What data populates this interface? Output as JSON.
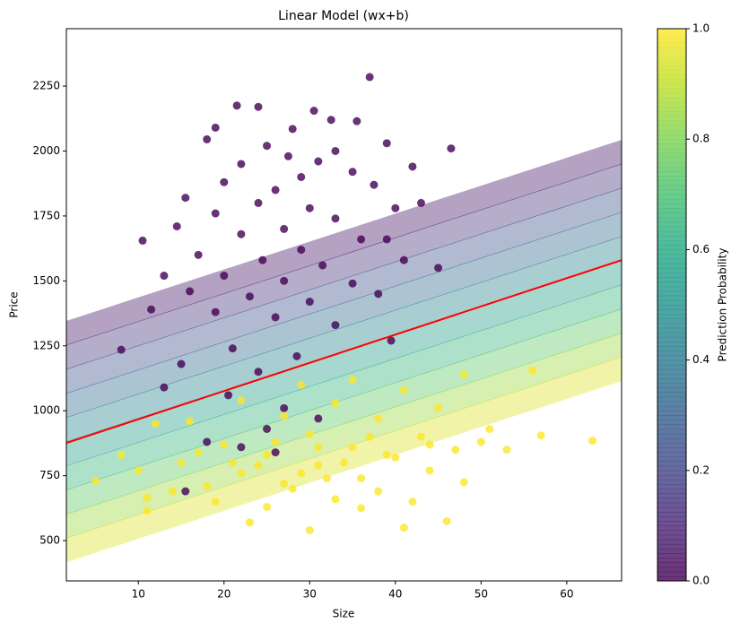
{
  "chart_data": {
    "type": "scatter",
    "title": "Linear Model (wx+b)",
    "x_label": "Size",
    "y_label": "Price",
    "xlim": [
      1.6,
      66.4
    ],
    "ylim": [
      345,
      2471
    ],
    "xticks": [
      10,
      20,
      30,
      40,
      50,
      60
    ],
    "yticks": [
      500,
      750,
      1000,
      1250,
      1500,
      1750,
      2000,
      2250
    ],
    "grid": false,
    "series": [
      {
        "color": "#440154",
        "x": [
          37,
          21.5,
          24,
          30.5,
          32.5,
          35.5,
          19,
          28,
          39,
          46.5,
          25,
          33,
          18,
          27.5,
          31,
          42,
          22,
          35,
          15.5,
          20,
          29,
          26,
          37.5,
          24,
          30,
          40,
          43,
          19,
          14.5,
          33,
          27,
          22,
          36,
          10.5,
          39,
          29,
          17,
          24.5,
          31.5,
          41,
          45,
          20,
          27,
          35,
          13,
          16,
          23,
          30,
          38,
          11.5,
          19,
          26,
          33,
          39.5,
          8,
          21,
          28.5,
          15,
          24,
          13,
          20.5,
          27,
          31,
          25,
          18,
          26,
          15.5,
          22
        ],
        "values": [
          2285,
          2175,
          2170,
          2155,
          2120,
          2115,
          2090,
          2085,
          2030,
          2010,
          2020,
          2000,
          2045,
          1980,
          1960,
          1940,
          1950,
          1920,
          1820,
          1880,
          1900,
          1850,
          1870,
          1800,
          1780,
          1780,
          1800,
          1760,
          1710,
          1740,
          1700,
          1680,
          1660,
          1655,
          1660,
          1620,
          1600,
          1580,
          1560,
          1580,
          1550,
          1520,
          1500,
          1490,
          1520,
          1460,
          1440,
          1420,
          1450,
          1390,
          1380,
          1360,
          1330,
          1270,
          1235,
          1240,
          1210,
          1180,
          1150,
          1090,
          1060,
          1010,
          970,
          930,
          880,
          840,
          690,
          860
        ]
      },
      {
        "color": "#fde725",
        "x": [
          56,
          48,
          35,
          29,
          41,
          22,
          33,
          45,
          16,
          27,
          38,
          51,
          12,
          30,
          43,
          57,
          63,
          20,
          35,
          47,
          8,
          25,
          40,
          53,
          15,
          31,
          44,
          10,
          22,
          36,
          48,
          5,
          18,
          28,
          38,
          14,
          33,
          42,
          11,
          25,
          36,
          23,
          41,
          46,
          30,
          11,
          19,
          32,
          34,
          29,
          37,
          26,
          31,
          39,
          24,
          27,
          44,
          50,
          17,
          21
        ],
        "values": [
          1155,
          1140,
          1120,
          1100,
          1080,
          1040,
          1030,
          1010,
          960,
          980,
          970,
          930,
          950,
          910,
          900,
          905,
          885,
          870,
          860,
          850,
          830,
          830,
          820,
          850,
          800,
          790,
          770,
          770,
          760,
          740,
          725,
          730,
          710,
          700,
          690,
          690,
          660,
          650,
          665,
          630,
          625,
          570,
          550,
          575,
          540,
          615,
          650,
          740,
          800,
          760,
          900,
          880,
          860,
          830,
          790,
          720,
          870,
          880,
          840,
          800
        ]
      }
    ],
    "decision_line": {
      "color": "#ff0000",
      "x": [
        1.6,
        66.4
      ],
      "y": [
        876,
        1580
      ]
    },
    "contour": {
      "levels": [
        0,
        0.1,
        0.2,
        0.3,
        0.4,
        0.5,
        0.6,
        0.7,
        0.8,
        0.9,
        1
      ],
      "values": [
        [
          1346,
          2043
        ],
        [
          1253,
          1950
        ],
        [
          1160,
          1857
        ],
        [
          1067,
          1764
        ],
        [
          974,
          1671
        ],
        [
          881,
          1578
        ],
        [
          788,
          1485
        ],
        [
          695,
          1392
        ],
        [
          602,
          1299
        ],
        [
          510,
          1207
        ],
        [
          417,
          1114
        ]
      ]
    },
    "colorbar": {
      "label": "Prediction Probability",
      "colormap": "viridis",
      "lim": [
        0,
        1
      ],
      "ticks": [
        {
          "value": 0,
          "label": "0.0"
        },
        0.2,
        0.4,
        0.6,
        0.8,
        {
          "value": 1,
          "label": "1.0"
        }
      ]
    }
  }
}
